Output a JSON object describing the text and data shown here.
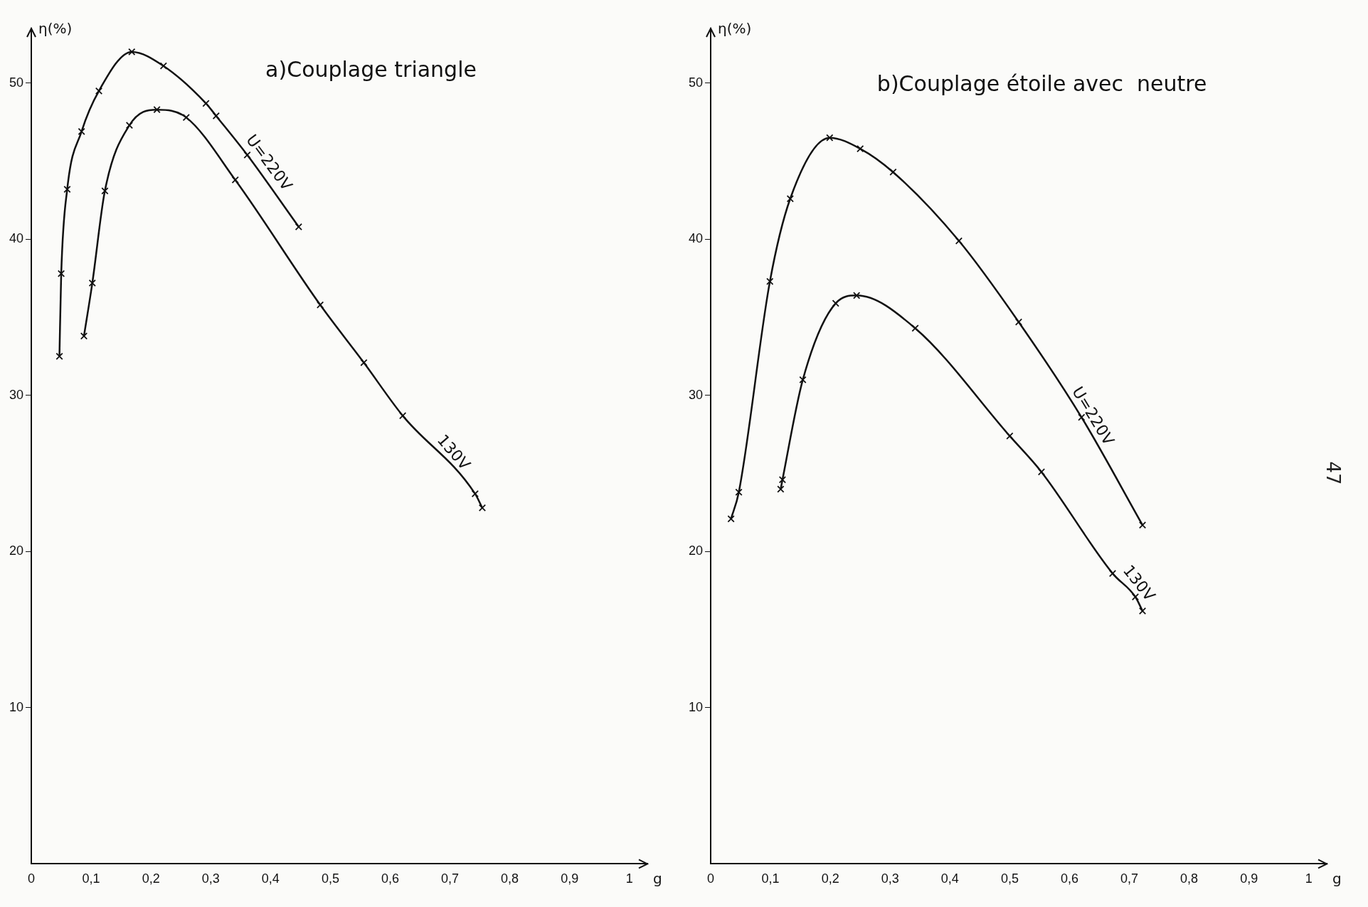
{
  "chart_data": [
    {
      "type": "line",
      "title": "a)Couplage triangle",
      "xlabel": "g",
      "ylabel": "η(%)",
      "xlim": [
        0,
        1.03
      ],
      "ylim": [
        0,
        53.5
      ],
      "xticks": [
        {
          "value": 0,
          "label": "0"
        },
        {
          "value": 0.1,
          "label": "0,1"
        },
        {
          "value": 0.2,
          "label": "0,2"
        },
        {
          "value": 0.3,
          "label": "0,3"
        },
        {
          "value": 0.4,
          "label": "0,4"
        },
        {
          "value": 0.5,
          "label": "0,5"
        },
        {
          "value": 0.6,
          "label": "0,6"
        },
        {
          "value": 0.7,
          "label": "0,7"
        },
        {
          "value": 0.8,
          "label": "0,8"
        },
        {
          "value": 0.9,
          "label": "0,9"
        },
        {
          "value": 1,
          "label": "1"
        }
      ],
      "yticks": [
        10,
        20,
        30,
        40,
        50
      ],
      "grid": false,
      "legend": false,
      "marker": "cross",
      "line_style": "solid",
      "series": [
        {
          "name": "U=220V",
          "color": "#111111",
          "x": [
            0.047,
            0.05,
            0.06,
            0.084,
            0.113,
            0.168,
            0.221,
            0.292,
            0.309,
            0.361,
            0.447
          ],
          "values": [
            32.5,
            37.8,
            43.2,
            46.9,
            49.5,
            52.0,
            51.1,
            48.7,
            47.9,
            45.4,
            40.8
          ]
        },
        {
          "name": "130V",
          "color": "#111111",
          "x": [
            0.088,
            0.102,
            0.123,
            0.164,
            0.21,
            0.259,
            0.341,
            0.483,
            0.556,
            0.621,
            0.742,
            0.754
          ],
          "values": [
            33.8,
            37.2,
            43.1,
            47.3,
            48.3,
            47.8,
            43.8,
            35.8,
            32.1,
            28.7,
            23.7,
            22.8
          ]
        }
      ]
    },
    {
      "type": "line",
      "title": "b)Couplage étoile avec  neutre",
      "xlabel": "g",
      "ylabel": "η(%)",
      "xlim": [
        0,
        1.03
      ],
      "ylim": [
        0,
        53.5
      ],
      "xticks": [
        {
          "value": 0,
          "label": "0"
        },
        {
          "value": 0.1,
          "label": "0,1"
        },
        {
          "value": 0.2,
          "label": "0,2"
        },
        {
          "value": 0.3,
          "label": "0,3"
        },
        {
          "value": 0.4,
          "label": "0,4"
        },
        {
          "value": 0.5,
          "label": "0,5"
        },
        {
          "value": 0.6,
          "label": "0,6"
        },
        {
          "value": 0.7,
          "label": "0,7"
        },
        {
          "value": 0.8,
          "label": "0,8"
        },
        {
          "value": 0.9,
          "label": "0,9"
        },
        {
          "value": 1,
          "label": "1"
        }
      ],
      "yticks": [
        10,
        20,
        30,
        40,
        50
      ],
      "grid": false,
      "legend": false,
      "marker": "cross",
      "line_style": "solid",
      "annotations": [
        "47"
      ],
      "series": [
        {
          "name": "U=220V",
          "color": "#111111",
          "x": [
            0.034,
            0.047,
            0.099,
            0.133,
            0.199,
            0.25,
            0.305,
            0.415,
            0.515,
            0.62,
            0.722
          ],
          "values": [
            22.1,
            23.8,
            37.3,
            42.6,
            46.5,
            45.8,
            44.3,
            39.9,
            34.7,
            28.6,
            21.7
          ]
        },
        {
          "name": "130V",
          "color": "#111111",
          "x": [
            0.117,
            0.12,
            0.154,
            0.209,
            0.244,
            0.342,
            0.5,
            0.553,
            0.672,
            0.71,
            0.722
          ],
          "values": [
            24.0,
            24.6,
            31.0,
            35.9,
            36.4,
            34.3,
            27.4,
            25.1,
            18.6,
            17.1,
            16.2
          ]
        }
      ]
    }
  ]
}
